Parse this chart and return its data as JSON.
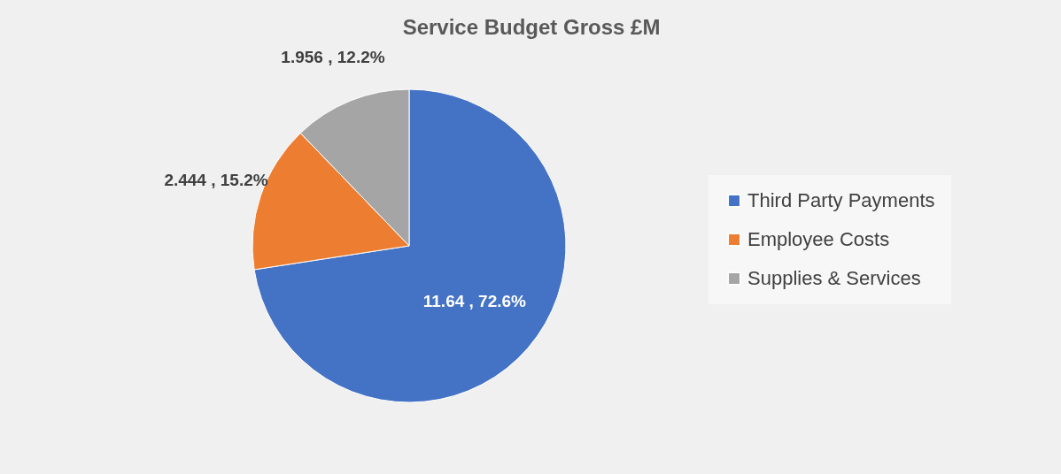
{
  "chart_data": {
    "type": "pie",
    "title": "Service Budget Gross £M",
    "categories": [
      "Third Party Payments",
      "Employee Costs",
      "Supplies & Services"
    ],
    "values": [
      11.64,
      2.444,
      1.956
    ],
    "colors": [
      "#4472c4",
      "#ed7d31",
      "#a5a5a5"
    ],
    "value_labels": [
      "11.64 , 72.6%",
      "2.444 , 15.2%",
      "1.956 , 12.2%"
    ],
    "legend": "right"
  }
}
